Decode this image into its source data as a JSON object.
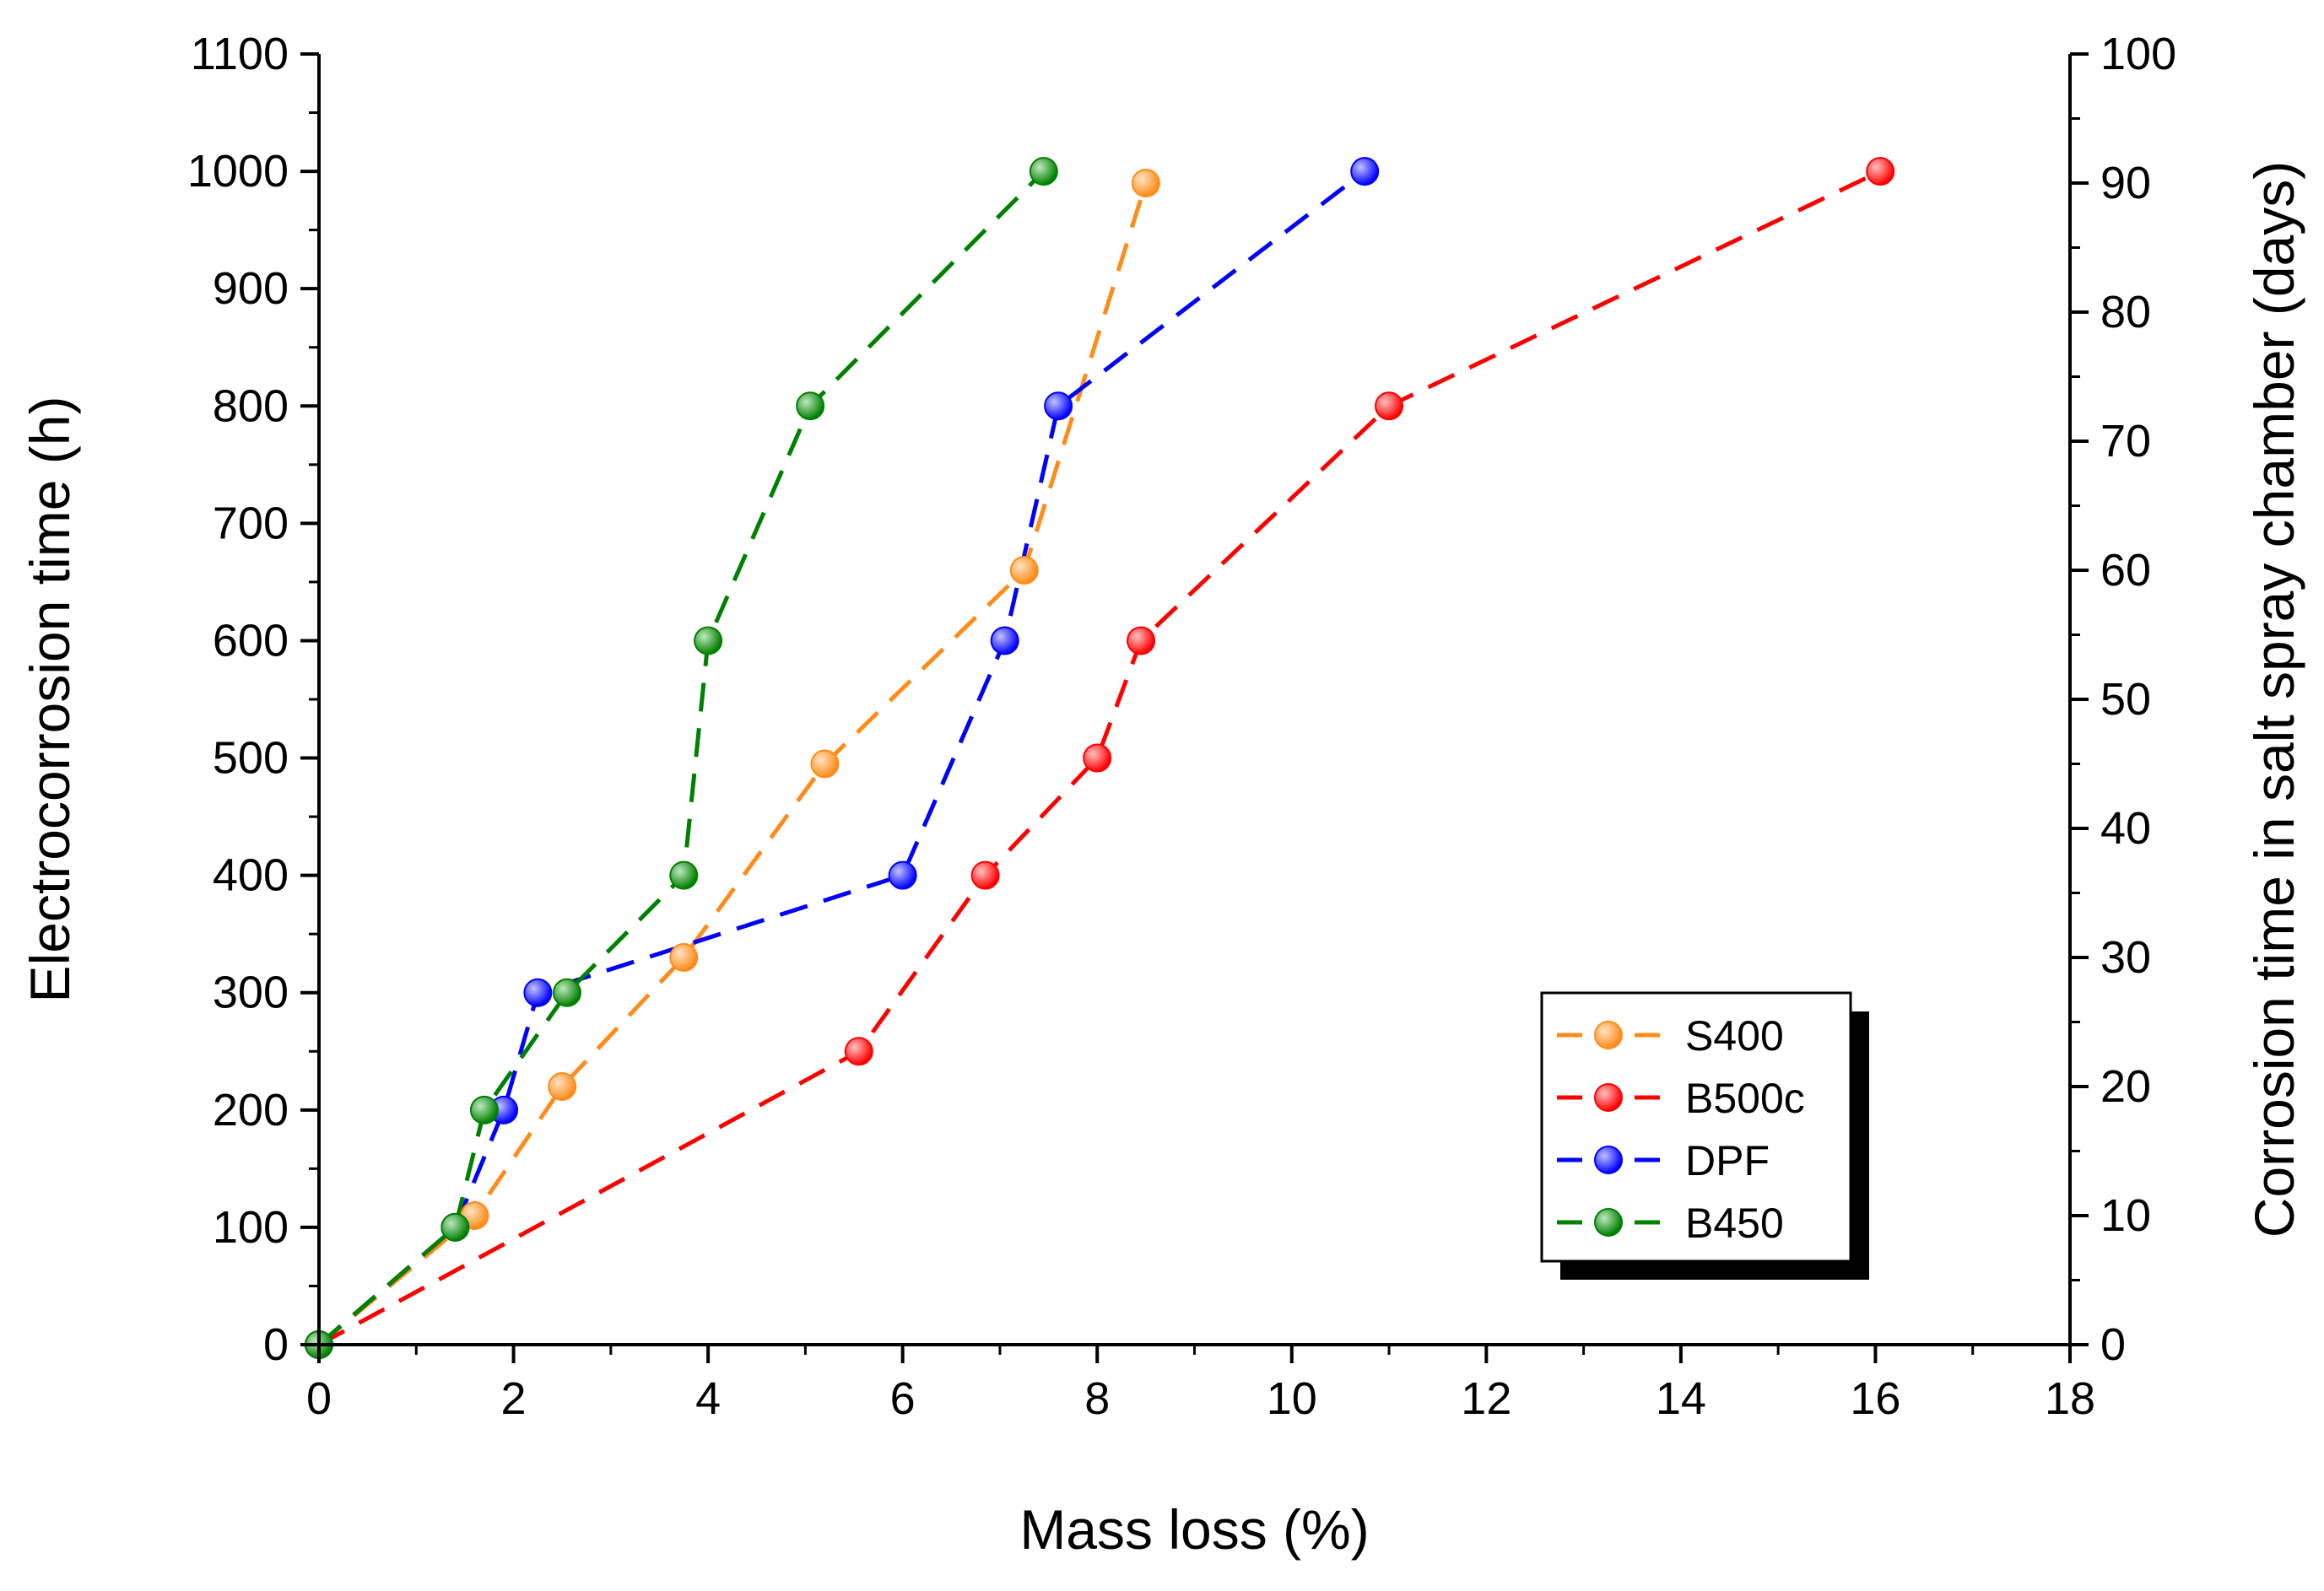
{
  "chart_data": {
    "type": "line",
    "title": "",
    "xlabel": "Mass loss (%)",
    "ylabel": "Electrocorrosion time (h)",
    "y2label": "Corrosion time in salt spray chamber (days)",
    "xlim": [
      0,
      18
    ],
    "ylim": [
      0,
      1100
    ],
    "y2lim": [
      0,
      100
    ],
    "xticks": [
      0,
      2,
      4,
      6,
      8,
      10,
      12,
      14,
      16,
      18
    ],
    "yticks": [
      0,
      100,
      200,
      300,
      400,
      500,
      600,
      700,
      800,
      900,
      1000,
      1100
    ],
    "y2ticks": [
      0,
      10,
      20,
      30,
      40,
      50,
      60,
      70,
      80,
      90,
      100
    ],
    "grid": false,
    "legend_position": "bottom-right",
    "series": [
      {
        "name": "S400",
        "color": "#FF8C1A",
        "points": [
          [
            0,
            0
          ],
          [
            1.6,
            110
          ],
          [
            2.5,
            220
          ],
          [
            3.75,
            330
          ],
          [
            5.2,
            495
          ],
          [
            7.25,
            660
          ],
          [
            8.5,
            990
          ]
        ]
      },
      {
        "name": "B500c",
        "color": "#FF0000",
        "points": [
          [
            0,
            0
          ],
          [
            5.55,
            250
          ],
          [
            6.85,
            400
          ],
          [
            8.0,
            500
          ],
          [
            8.45,
            600
          ],
          [
            11.0,
            800
          ],
          [
            16.05,
            1000
          ]
        ]
      },
      {
        "name": "DPF",
        "color": "#0000FF",
        "points": [
          [
            0,
            0
          ],
          [
            1.4,
            100
          ],
          [
            1.9,
            200
          ],
          [
            2.25,
            300
          ],
          [
            6.0,
            400
          ],
          [
            7.05,
            600
          ],
          [
            7.6,
            800
          ],
          [
            10.75,
            1000
          ]
        ]
      },
      {
        "name": "B450",
        "color": "#008000",
        "points": [
          [
            0,
            0
          ],
          [
            1.4,
            100
          ],
          [
            1.7,
            200
          ],
          [
            2.55,
            300
          ],
          [
            3.75,
            400
          ],
          [
            4.0,
            600
          ],
          [
            5.05,
            800
          ],
          [
            7.45,
            1000
          ]
        ]
      }
    ]
  }
}
